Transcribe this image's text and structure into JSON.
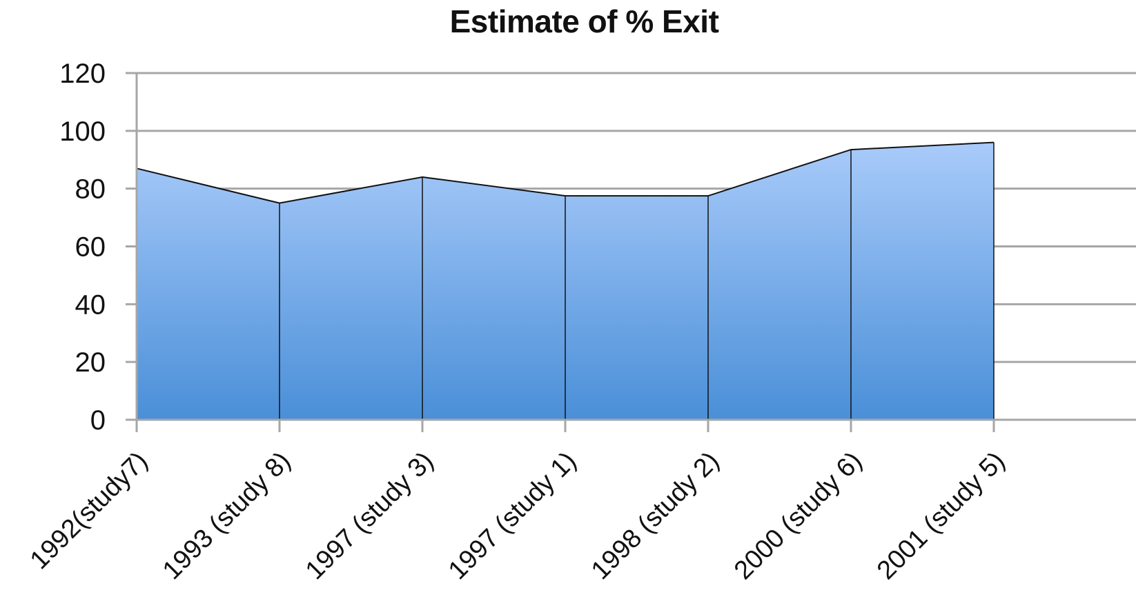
{
  "chart_data": {
    "type": "area",
    "title": "Estimate of % Exit",
    "categories": [
      "1992(study7)",
      "1993 (study 8)",
      "1997 (study 3)",
      "1997 (study 1)",
      "1998 (study 2)",
      "2000 (study 6)",
      "2001 (study 5)"
    ],
    "values": [
      87,
      75,
      84,
      77.5,
      77.5,
      93.5,
      96
    ],
    "ylim": [
      0,
      120
    ],
    "yticks": [
      0,
      20,
      40,
      60,
      80,
      100,
      120
    ],
    "grid": true,
    "legend": "none",
    "fill_top_color": "#a9cbfa",
    "fill_bottom_color": "#4a8fd8",
    "line_color": "#111111",
    "grid_color": "#a6a6a6"
  }
}
